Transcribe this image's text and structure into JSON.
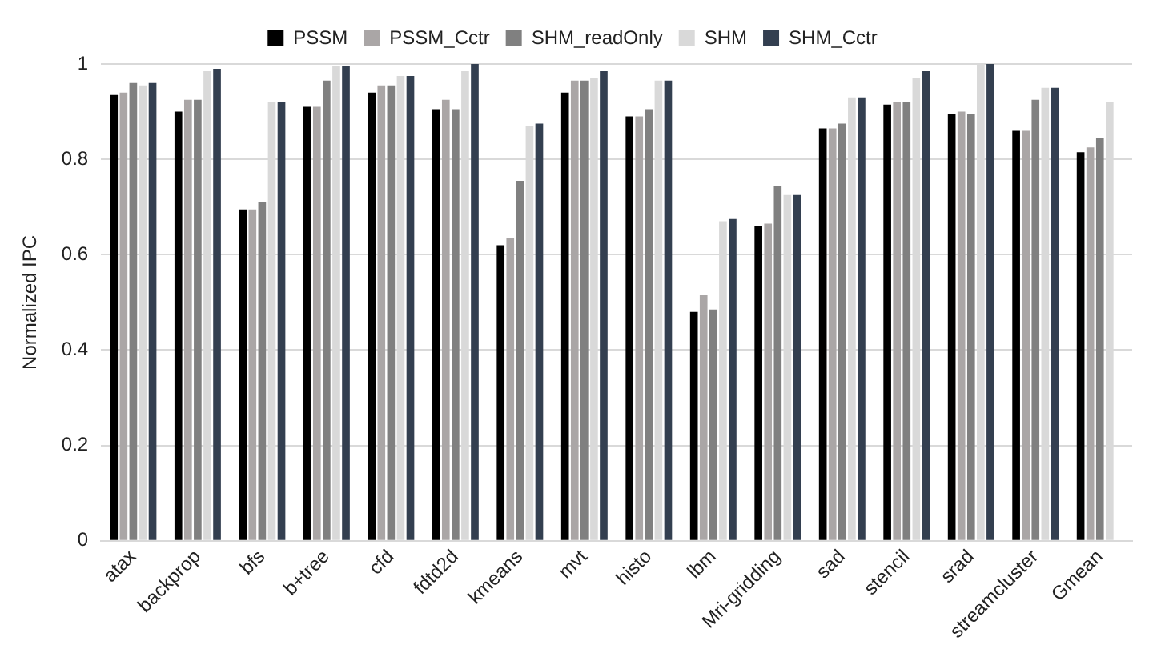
{
  "chart_data": {
    "type": "bar",
    "ylabel": "Normalized IPC",
    "categories": [
      "atax",
      "backprop",
      "bfs",
      "b+tree",
      "cfd",
      "fdtd2d",
      "kmeans",
      "mvt",
      "histo",
      "lbm",
      "Mri-gridding",
      "sad",
      "stencil",
      "srad",
      "streamcluster",
      "Gmean"
    ],
    "series": [
      {
        "name": "PSSM",
        "color": "#000000",
        "values": [
          0.935,
          0.9,
          0.695,
          0.91,
          0.94,
          0.905,
          0.62,
          0.94,
          0.89,
          0.48,
          0.66,
          0.865,
          0.915,
          0.895,
          0.86,
          0.815
        ]
      },
      {
        "name": "PSSM_Cctr",
        "color": "#aaa6a6",
        "values": [
          0.94,
          0.925,
          0.695,
          0.91,
          0.955,
          0.925,
          0.635,
          0.965,
          0.89,
          0.515,
          0.665,
          0.865,
          0.92,
          0.9,
          0.86,
          0.825
        ]
      },
      {
        "name": "SHM_readOnly",
        "color": "#808080",
        "values": [
          0.96,
          0.925,
          0.71,
          0.965,
          0.955,
          0.905,
          0.755,
          0.965,
          0.905,
          0.485,
          0.745,
          0.875,
          0.92,
          0.895,
          0.925,
          0.845
        ]
      },
      {
        "name": "SHM",
        "color": "#d9d9d9",
        "values": [
          0.955,
          0.985,
          0.92,
          0.995,
          0.975,
          0.985,
          0.87,
          0.97,
          0.965,
          0.67,
          0.725,
          0.93,
          0.97,
          1.0,
          0.95,
          0.92
        ]
      },
      {
        "name": "SHM_Cctr",
        "color": "#333f50",
        "values": [
          0.96,
          0.99,
          0.92,
          0.995,
          0.975,
          1.0,
          0.875,
          0.985,
          0.965,
          0.675,
          0.725,
          0.93,
          0.985,
          1.0,
          0.95,
          null
        ]
      }
    ],
    "ylim": [
      0,
      1
    ],
    "yticks": [
      0,
      0.2,
      0.4,
      0.6,
      0.8,
      1
    ],
    "grid": "y",
    "legend": "top"
  }
}
